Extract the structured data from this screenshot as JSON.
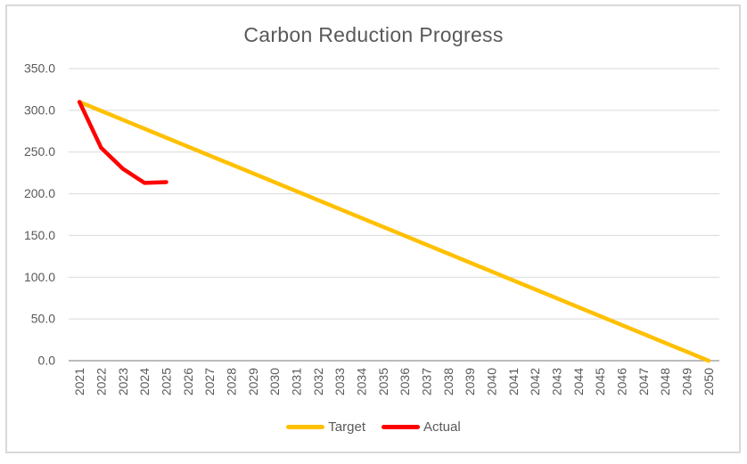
{
  "chart_data": {
    "type": "line",
    "title": "Carbon Reduction Progress",
    "xlabel": "",
    "ylabel": "",
    "categories": [
      "2021",
      "2022",
      "2023",
      "2024",
      "2025",
      "2026",
      "2027",
      "2028",
      "2029",
      "2030",
      "2031",
      "2032",
      "2033",
      "2034",
      "2035",
      "2036",
      "2037",
      "2038",
      "2039",
      "2040",
      "2041",
      "2042",
      "2043",
      "2044",
      "2045",
      "2046",
      "2047",
      "2048",
      "2049",
      "2050"
    ],
    "ylim": [
      0,
      350
    ],
    "y_tick_step": 50,
    "y_tick_labels": [
      "0.0",
      "50.0",
      "100.0",
      "150.0",
      "200.0",
      "250.0",
      "300.0",
      "350.0"
    ],
    "grid": true,
    "legend_position": "bottom",
    "series": [
      {
        "name": "Target",
        "color": "#FFC000",
        "x": [
          "2021",
          "2050"
        ],
        "values": [
          310,
          0
        ],
        "note": "straight line from 310 in 2021 to 0 in 2050"
      },
      {
        "name": "Actual",
        "color": "#FF0000",
        "x": [
          "2021",
          "2022",
          "2023",
          "2024",
          "2025"
        ],
        "values": [
          310,
          255,
          230,
          213,
          214
        ]
      }
    ],
    "colors": {
      "grid": "#D9D9D9",
      "axis": "#A6A6A6",
      "text": "#595959",
      "border": "#D9D9D9"
    }
  }
}
